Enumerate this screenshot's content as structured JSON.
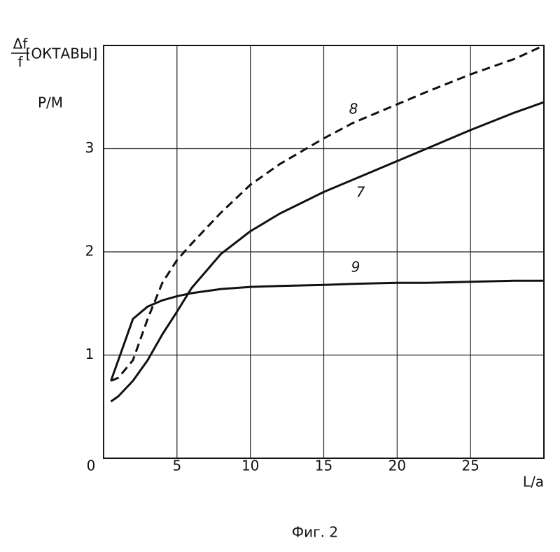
{
  "chart_data": {
    "type": "line",
    "title": "Фиг. 2",
    "y_label_numerator": "Δf",
    "y_label_denominator": "f",
    "y_label_unit": "[ОКТАВЫ]",
    "y_label_2": "P/M",
    "x_label": "L/a",
    "x": [
      0.5,
      1,
      2,
      3,
      4,
      5,
      6,
      8,
      10,
      12,
      15,
      17,
      20,
      22,
      25,
      28,
      30
    ],
    "series": [
      {
        "name": "8",
        "color": "#111",
        "dashed": true,
        "values": [
          0.75,
          0.78,
          0.95,
          1.35,
          1.7,
          1.92,
          2.08,
          2.38,
          2.65,
          2.85,
          3.1,
          3.25,
          3.43,
          3.55,
          3.72,
          3.87,
          4.0
        ]
      },
      {
        "name": "7",
        "color": "#111",
        "dashed": false,
        "values": [
          0.55,
          0.6,
          0.75,
          0.95,
          1.2,
          1.42,
          1.65,
          1.98,
          2.2,
          2.37,
          2.58,
          2.7,
          2.88,
          3.0,
          3.18,
          3.35,
          3.45
        ]
      },
      {
        "name": "9",
        "color": "#111",
        "dashed": false,
        "values": [
          0.75,
          0.95,
          1.35,
          1.47,
          1.53,
          1.57,
          1.6,
          1.64,
          1.66,
          1.67,
          1.68,
          1.69,
          1.7,
          1.7,
          1.71,
          1.72,
          1.72
        ]
      }
    ],
    "xlim": [
      0,
      30
    ],
    "ylim": [
      0,
      4
    ],
    "xticks": [
      0,
      5,
      10,
      15,
      20,
      25
    ],
    "yticks": [
      1,
      2,
      3
    ],
    "grid": true
  }
}
